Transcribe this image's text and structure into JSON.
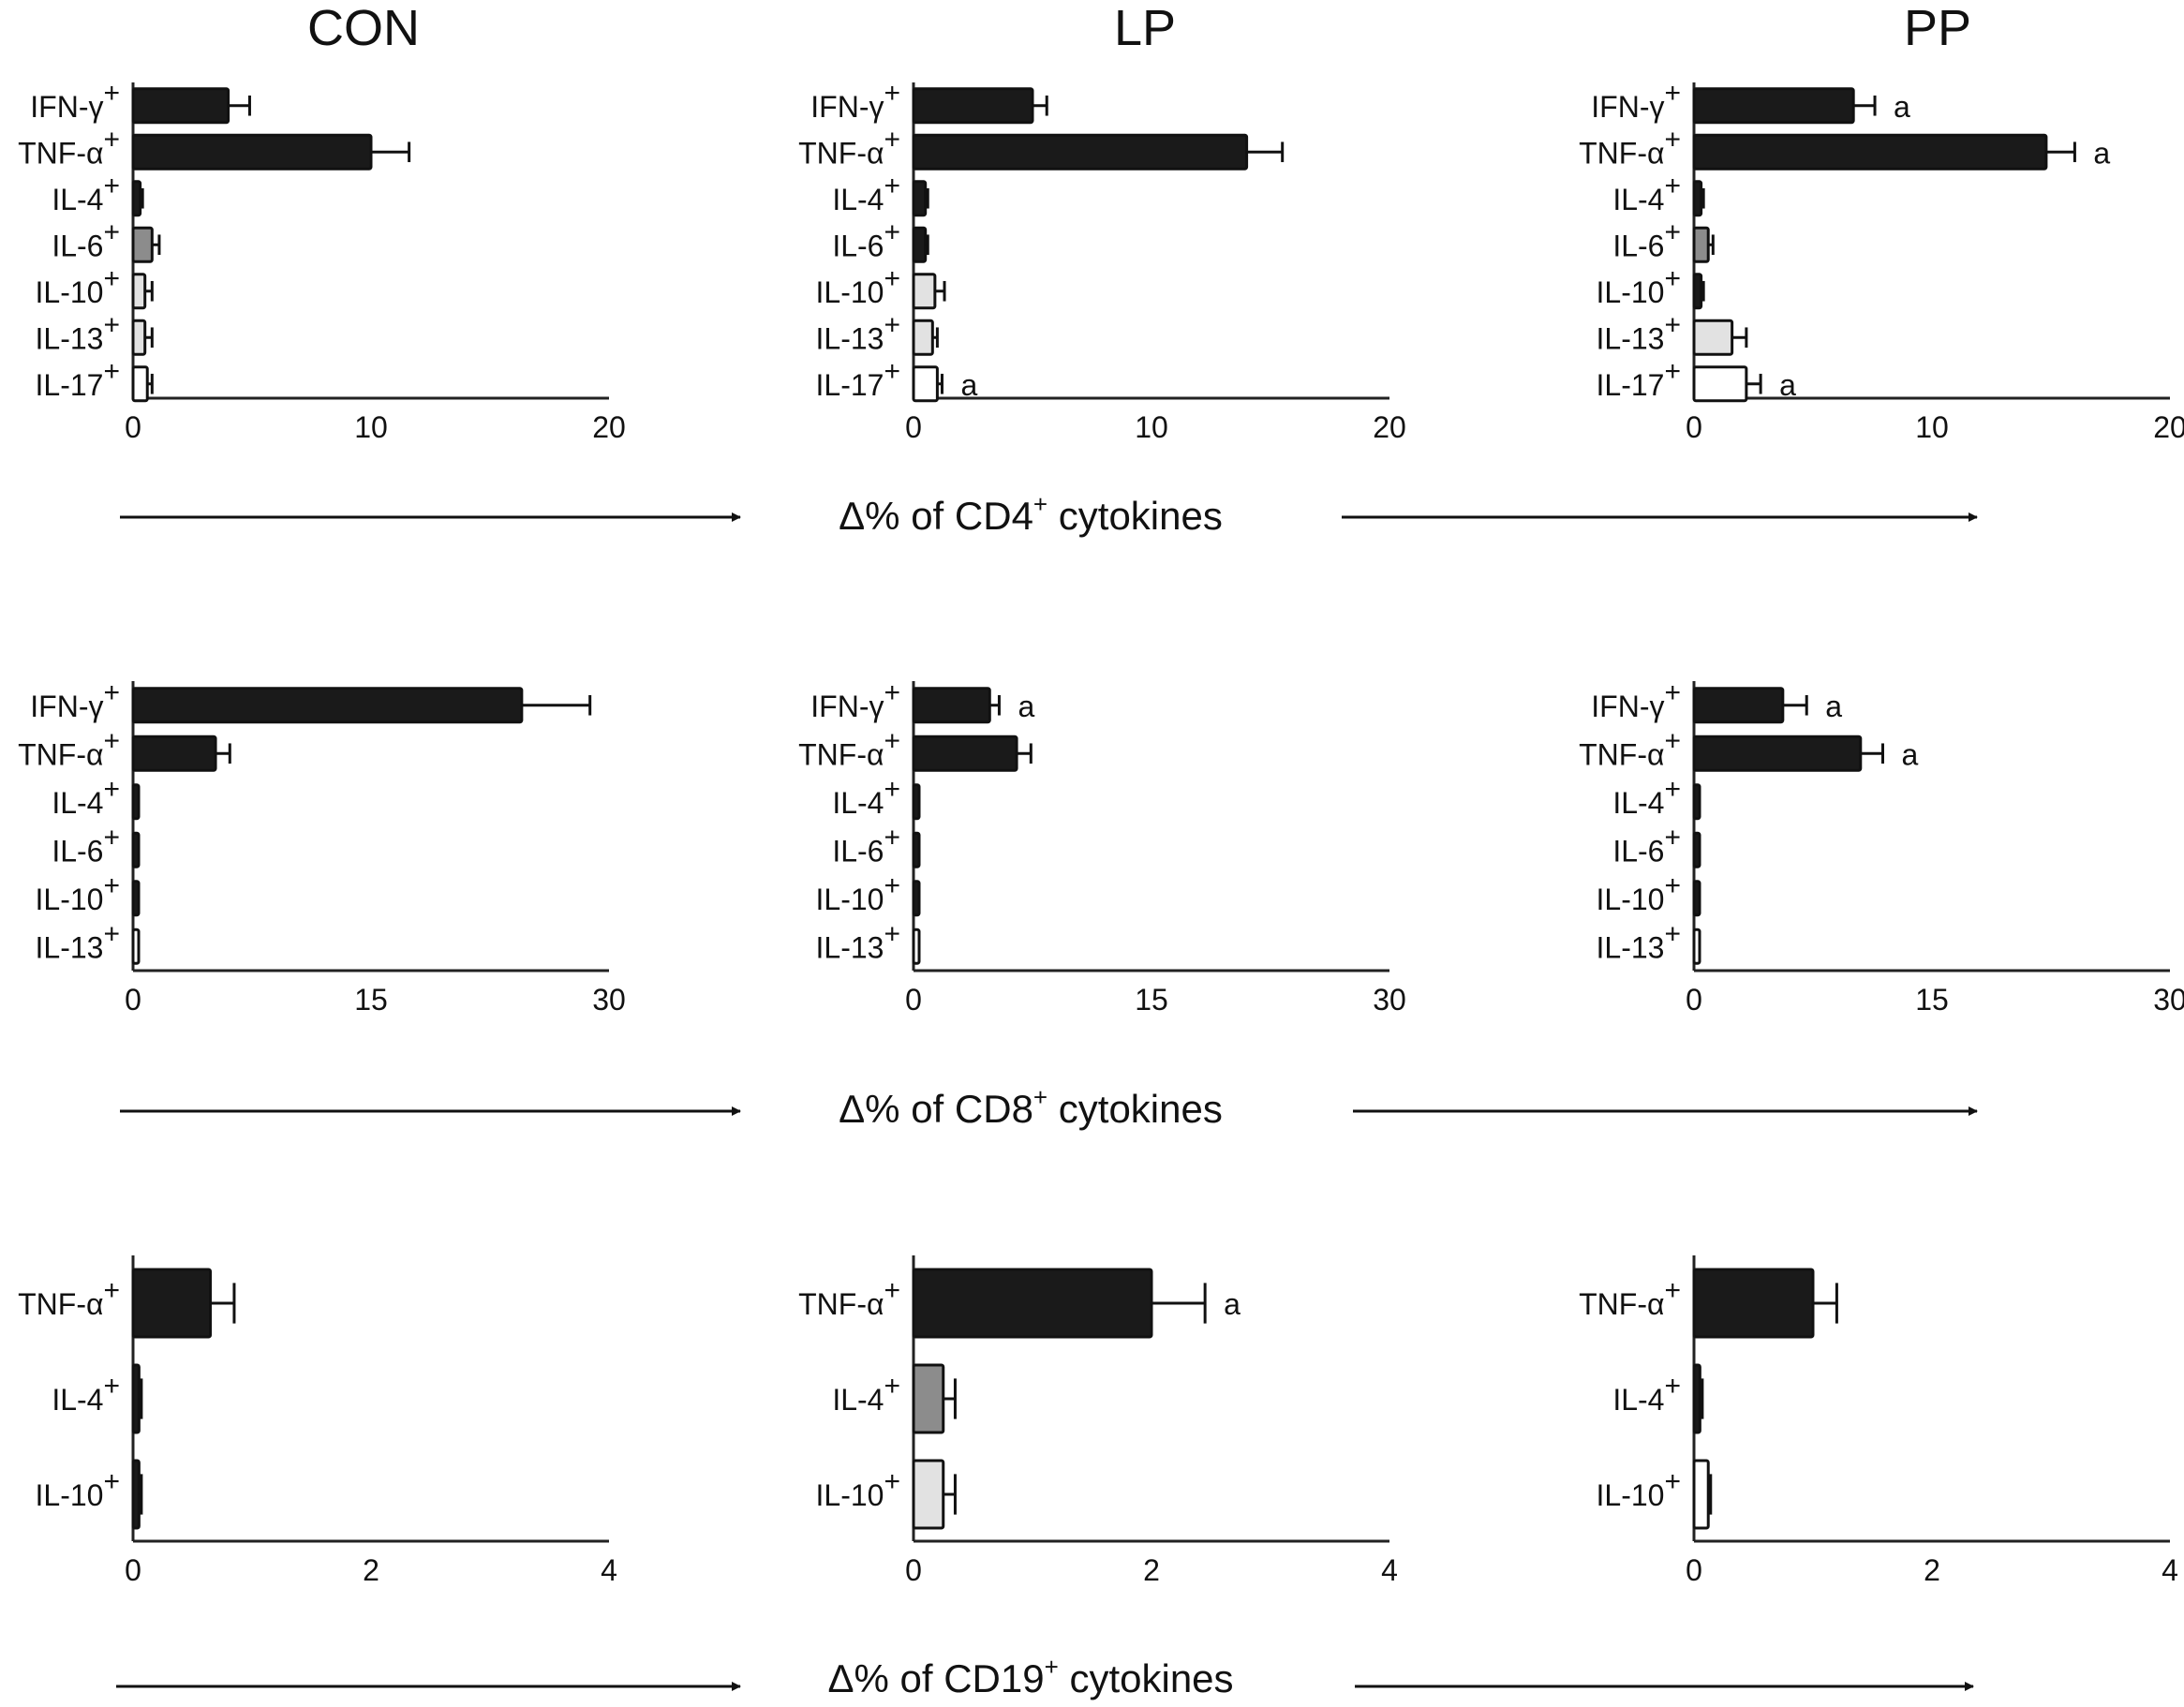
{
  "figure": {
    "column_titles": [
      "CON",
      "LP",
      "PP"
    ],
    "row_labels": [
      {
        "prefix": "Δ% of CD",
        "number": "4",
        "sup": "+",
        "suffix": " cytokines"
      },
      {
        "prefix": "Δ% of CD",
        "number": "8",
        "sup": "+",
        "suffix": " cytokines"
      },
      {
        "prefix": "Δ% of CD",
        "number": "19",
        "sup": "+",
        "suffix": " cytokines"
      }
    ]
  },
  "colors": {
    "dark": "#1a1a1a",
    "medium": "#8c8c8c",
    "light": "#e2e2e2",
    "white": "#ffffff",
    "axis": "#222222"
  },
  "chart_data": [
    {
      "type": "bar",
      "orientation": "horizontal",
      "title": "CON",
      "row": "CD4",
      "xlim": [
        0,
        20
      ],
      "xticks": [
        0,
        10,
        20
      ],
      "categories": [
        "IFN-γ+",
        "TNF-α+",
        "IL-4+",
        "IL-6+",
        "IL-10+",
        "IL-13+",
        "IL-17+"
      ],
      "values": [
        4.0,
        10.0,
        0.3,
        0.8,
        0.5,
        0.5,
        0.6
      ],
      "errors": [
        0.9,
        1.6,
        0.1,
        0.3,
        0.3,
        0.3,
        0.2
      ],
      "fills": [
        "dark",
        "dark",
        "dark",
        "medium",
        "light",
        "light",
        "white"
      ],
      "annotations": [
        "",
        "",
        "",
        "",
        "",
        "",
        ""
      ]
    },
    {
      "type": "bar",
      "orientation": "horizontal",
      "title": "LP",
      "row": "CD4",
      "xlim": [
        0,
        20
      ],
      "xticks": [
        0,
        10,
        20
      ],
      "categories": [
        "IFN-γ+",
        "TNF-α+",
        "IL-4+",
        "IL-6+",
        "IL-10+",
        "IL-13+",
        "IL-17+"
      ],
      "values": [
        5.0,
        14.0,
        0.5,
        0.5,
        0.9,
        0.8,
        1.0
      ],
      "errors": [
        0.6,
        1.5,
        0.1,
        0.1,
        0.4,
        0.2,
        0.2
      ],
      "fills": [
        "dark",
        "dark",
        "dark",
        "dark",
        "light",
        "light",
        "white"
      ],
      "annotations": [
        "",
        "",
        "",
        "",
        "",
        "",
        "a"
      ]
    },
    {
      "type": "bar",
      "orientation": "horizontal",
      "title": "PP",
      "row": "CD4",
      "xlim": [
        0,
        20
      ],
      "xticks": [
        0,
        10,
        20
      ],
      "categories": [
        "IFN-γ+",
        "TNF-α+",
        "IL-4+",
        "IL-6+",
        "IL-10+",
        "IL-13+",
        "IL-17+"
      ],
      "values": [
        6.7,
        14.8,
        0.3,
        0.6,
        0.3,
        1.6,
        2.2
      ],
      "errors": [
        0.9,
        1.2,
        0.1,
        0.2,
        0.1,
        0.6,
        0.6
      ],
      "fills": [
        "dark",
        "dark",
        "dark",
        "medium",
        "dark",
        "light",
        "white"
      ],
      "annotations": [
        "a",
        "a",
        "",
        "",
        "",
        "",
        "a"
      ]
    },
    {
      "type": "bar",
      "orientation": "horizontal",
      "title": "CON",
      "row": "CD8",
      "xlim": [
        0,
        30
      ],
      "xticks": [
        0,
        15,
        30
      ],
      "categories": [
        "IFN-γ+",
        "TNF-α+",
        "IL-4+",
        "IL-6+",
        "IL-10+",
        "IL-13+"
      ],
      "values": [
        24.5,
        5.2,
        0.1,
        0.15,
        0.2,
        0.1
      ],
      "errors": [
        4.3,
        0.9,
        0.05,
        0.05,
        0.05,
        0.05
      ],
      "fills": [
        "dark",
        "dark",
        "dark",
        "dark",
        "dark",
        "white"
      ],
      "annotations": [
        "",
        "",
        "",
        "",
        "",
        ""
      ]
    },
    {
      "type": "bar",
      "orientation": "horizontal",
      "title": "LP",
      "row": "CD8",
      "xlim": [
        0,
        30
      ],
      "xticks": [
        0,
        15,
        30
      ],
      "categories": [
        "IFN-γ+",
        "TNF-α+",
        "IL-4+",
        "IL-6+",
        "IL-10+",
        "IL-13+"
      ],
      "values": [
        4.8,
        6.5,
        0.1,
        0.2,
        0.1,
        0.1
      ],
      "errors": [
        0.6,
        0.9,
        0.05,
        0.05,
        0.05,
        0.05
      ],
      "fills": [
        "dark",
        "dark",
        "dark",
        "dark",
        "dark",
        "white"
      ],
      "annotations": [
        "a",
        "",
        "",
        "",
        "",
        ""
      ]
    },
    {
      "type": "bar",
      "orientation": "horizontal",
      "title": "PP",
      "row": "CD8",
      "xlim": [
        0,
        30
      ],
      "xticks": [
        0,
        15,
        30
      ],
      "categories": [
        "IFN-γ+",
        "TNF-α+",
        "IL-4+",
        "IL-6+",
        "IL-10+",
        "IL-13+"
      ],
      "values": [
        5.6,
        10.5,
        0.1,
        0.2,
        0.1,
        0.1
      ],
      "errors": [
        1.5,
        1.4,
        0.05,
        0.05,
        0.05,
        0.05
      ],
      "fills": [
        "dark",
        "dark",
        "dark",
        "dark",
        "dark",
        "white"
      ],
      "annotations": [
        "a",
        "a",
        "",
        "",
        "",
        ""
      ]
    },
    {
      "type": "bar",
      "orientation": "horizontal",
      "title": "CON",
      "row": "CD19",
      "xlim": [
        0,
        4
      ],
      "xticks": [
        0,
        2,
        4
      ],
      "categories": [
        "TNF-α+",
        "IL-4+",
        "IL-10+"
      ],
      "values": [
        0.65,
        0.05,
        0.05
      ],
      "errors": [
        0.2,
        0.02,
        0.02
      ],
      "fills": [
        "dark",
        "dark",
        "dark"
      ],
      "annotations": [
        "",
        "",
        ""
      ]
    },
    {
      "type": "bar",
      "orientation": "horizontal",
      "title": "LP",
      "row": "CD19",
      "xlim": [
        0,
        4
      ],
      "xticks": [
        0,
        2,
        4
      ],
      "categories": [
        "TNF-α+",
        "IL-4+",
        "IL-10+"
      ],
      "values": [
        2.0,
        0.25,
        0.25
      ],
      "errors": [
        0.45,
        0.1,
        0.1
      ],
      "fills": [
        "dark",
        "medium",
        "light"
      ],
      "annotations": [
        "a",
        "",
        ""
      ]
    },
    {
      "type": "bar",
      "orientation": "horizontal",
      "title": "PP",
      "row": "CD19",
      "xlim": [
        0,
        4
      ],
      "xticks": [
        0,
        2,
        4
      ],
      "categories": [
        "TNF-α+",
        "IL-4+",
        "IL-10+"
      ],
      "values": [
        1.0,
        0.05,
        0.12
      ],
      "errors": [
        0.2,
        0.02,
        0.02
      ],
      "fills": [
        "dark",
        "dark",
        "white"
      ],
      "annotations": [
        "",
        "",
        ""
      ]
    }
  ]
}
